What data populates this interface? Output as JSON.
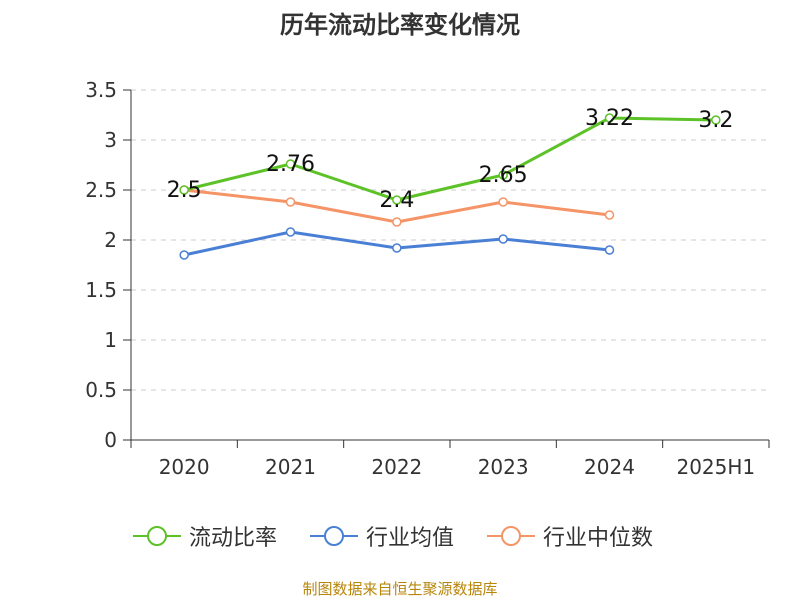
{
  "page": {
    "title": "历年流动比率变化情况",
    "source": "制图数据来自恒生聚源数据库"
  },
  "chart_data": {
    "type": "line",
    "title": "历年流动比率变化情况",
    "categories": [
      "2020",
      "2021",
      "2022",
      "2023",
      "2024",
      "2025H1"
    ],
    "ylim": [
      0,
      3.5
    ],
    "yticks": [
      "0",
      "0.5",
      "1",
      "1.5",
      "2",
      "2.5",
      "3",
      "3.5"
    ],
    "grid": true,
    "legend_position": "bottom",
    "series": [
      {
        "name": "流动比率",
        "color": "#5cc227",
        "values": [
          2.5,
          2.76,
          2.4,
          2.65,
          3.22,
          3.2
        ],
        "labels": [
          "2.5",
          "2.76",
          "2.4",
          "2.65",
          "3.22",
          "3.2"
        ]
      },
      {
        "name": "行业均值",
        "color": "#4a7fd6",
        "values": [
          1.85,
          2.08,
          1.92,
          2.01,
          1.9,
          null
        ]
      },
      {
        "name": "行业中位数",
        "color": "#f59466",
        "values": [
          2.5,
          2.38,
          2.18,
          2.38,
          2.25,
          null
        ]
      }
    ]
  }
}
